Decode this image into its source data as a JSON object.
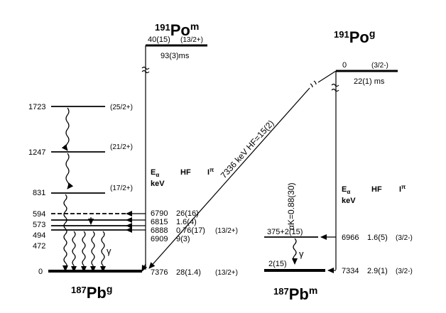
{
  "po_m": {
    "mass": "191",
    "symbol": "Po",
    "state": "m",
    "level_energy": "40(15)",
    "spin": "(13/2+)",
    "halflife": "93(3)ms"
  },
  "po_g": {
    "mass": "191",
    "symbol": "Po",
    "state": "g",
    "level_energy": "0",
    "spin": "(3/2-)",
    "halflife": "22(1) ms"
  },
  "pb_g": {
    "mass": "187",
    "symbol": "Pb",
    "state": "g",
    "levels": [
      {
        "energy": "1723",
        "spin": "(25/2+)"
      },
      {
        "energy": "1247",
        "spin": "(21/2+)"
      },
      {
        "energy": "831",
        "spin": "(17/2+)"
      },
      {
        "energy": "594",
        "spin": ""
      },
      {
        "energy": "573",
        "spin": ""
      },
      {
        "energy": "494",
        "spin": ""
      },
      {
        "energy": "472",
        "spin": ""
      },
      {
        "energy": "0",
        "spin": ""
      }
    ]
  },
  "pb_m": {
    "mass": "187",
    "symbol": "Pb",
    "state": "m",
    "level_upper": "375+2(15)",
    "level_lower": "2(15)"
  },
  "table_headers": {
    "ea": "E",
    "ea_sub": "α",
    "kev": "keV",
    "hf": "HF",
    "ipi": "I",
    "ipi_sup": "π"
  },
  "alpha_left": [
    {
      "e": "6790",
      "hf": "26(16)",
      "spin": ""
    },
    {
      "e": "6815",
      "hf": "1.6(4)",
      "spin": ""
    },
    {
      "e": "6888",
      "hf": "0.76(17)",
      "spin": "(13/2+)"
    },
    {
      "e": "6909",
      "hf": "9(3)",
      "spin": ""
    },
    {
      "e": "7376",
      "hf": "28(1.4)",
      "spin": "(13/2+)"
    }
  ],
  "alpha_right": [
    {
      "e": "6966",
      "hf": "1.6(5)",
      "spin": "(3/2-)"
    },
    {
      "e": "7334",
      "hf": "2.9(1)",
      "spin": "(3/2-)"
    }
  ],
  "diagonal_label": "7336 keV HF=15(2)",
  "alpha_k_label": "αK=0.88(30)",
  "gamma_symbol": "γ"
}
